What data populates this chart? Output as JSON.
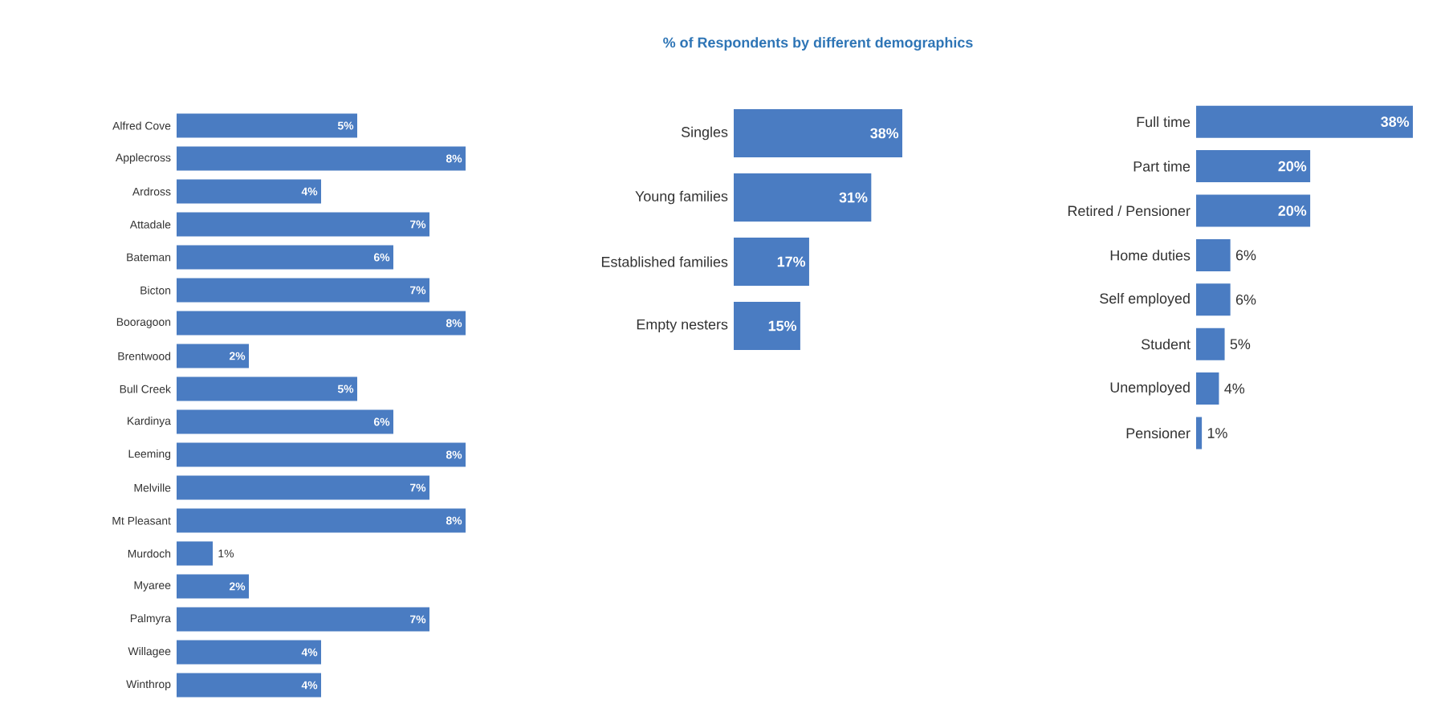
{
  "chart_data": [
    {
      "type": "bar",
      "orientation": "horizontal",
      "categories": [
        "Alfred Cove",
        "Applecross",
        "Ardross",
        "Attadale",
        "Bateman",
        "Bicton",
        "Booragoon",
        "Brentwood",
        "Bull Creek",
        "Kardinya",
        "Leeming",
        "Melville",
        "Mt Pleasant",
        "Murdoch",
        "Myaree",
        "Palmyra",
        "Willagee",
        "Winthrop"
      ],
      "values": [
        5,
        8,
        4,
        7,
        6,
        7,
        8,
        2,
        5,
        6,
        8,
        7,
        8,
        1,
        2,
        7,
        4,
        4
      ],
      "value_labels": [
        "5%",
        "8%",
        "4%",
        "7%",
        "6%",
        "7%",
        "8%",
        "2%",
        "5%",
        "6%",
        "8%",
        "7%",
        "8%",
        "1%",
        "2%",
        "7%",
        "4%",
        "4%"
      ],
      "color": "#4a7cc2",
      "xlim": [
        0,
        8
      ],
      "tick_labels": "y"
    },
    {
      "type": "bar",
      "orientation": "horizontal",
      "title": "% of Respondents by different demographics",
      "categories": [
        "Singles",
        "Young families",
        "Established families",
        "Empty nesters"
      ],
      "values": [
        38,
        31,
        17,
        15
      ],
      "value_labels": [
        "38%",
        "31%",
        "17%",
        "15%"
      ],
      "color": "#4a7cc2",
      "xlim": [
        0,
        38
      ],
      "tick_labels": "y"
    },
    {
      "type": "bar",
      "orientation": "horizontal",
      "categories": [
        "Full time",
        "Part time",
        "Retired / Pensioner",
        "Home duties",
        "Self employed",
        "Student",
        "Unemployed",
        "Pensioner"
      ],
      "values": [
        38,
        20,
        20,
        6,
        6,
        5,
        4,
        1
      ],
      "value_labels": [
        "38%",
        "20%",
        "20%",
        "6%",
        "6%",
        "5%",
        "4%",
        "1%"
      ],
      "color": "#4a7cc2",
      "xlim": [
        0,
        38
      ],
      "tick_labels": "y"
    }
  ]
}
